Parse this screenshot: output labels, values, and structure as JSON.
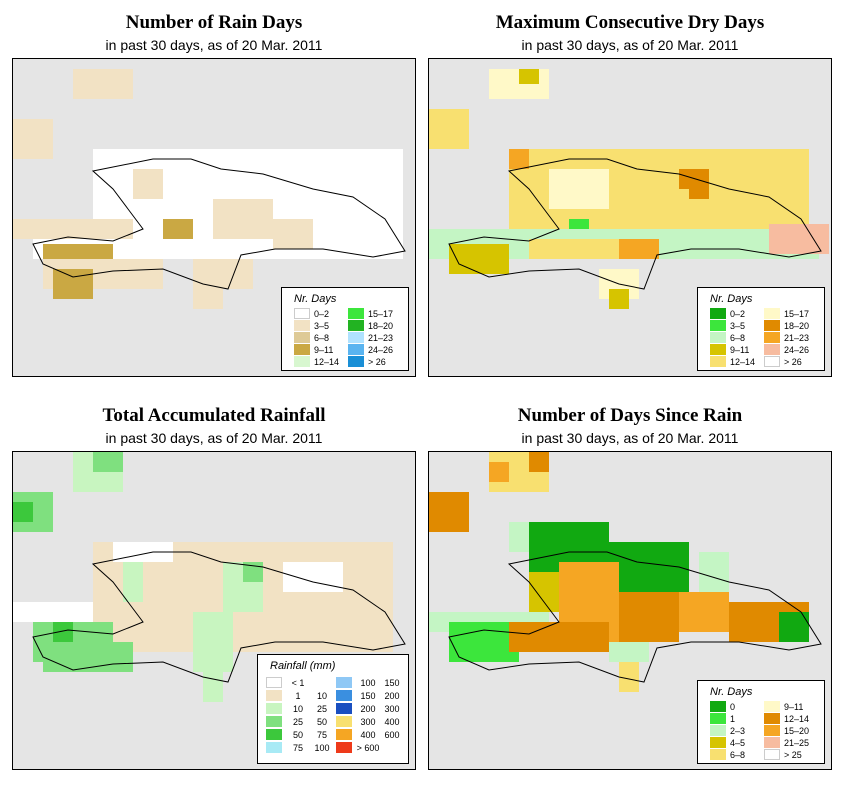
{
  "panels": [
    {
      "id": "rain-days",
      "title": "Number of Rain Days",
      "subtitle": "in past 30 days, as of  20 Mar. 2011",
      "legend": {
        "title": "Nr. Days",
        "items": [
          {
            "label": "0–2",
            "color": "#ffffff"
          },
          {
            "label": "3–5",
            "color": "#f2e2c4"
          },
          {
            "label": "6–8",
            "color": "#deca96"
          },
          {
            "label": "9–11",
            "color": "#caa843"
          },
          {
            "label": "12–14",
            "color": "#d8f7d0"
          },
          {
            "label": "15–17",
            "color": "#3ce63c"
          },
          {
            "label": "18–20",
            "color": "#22b322"
          },
          {
            "label": "21–23",
            "color": "#b0e2ff"
          },
          {
            "label": "24–26",
            "color": "#5ab4f0"
          },
          {
            "label": "> 26",
            "color": "#1a8fd6"
          }
        ]
      }
    },
    {
      "id": "max-dry-days",
      "title": "Maximum Consecutive Dry Days",
      "subtitle": "in past 30 days, as of  20 Mar. 2011",
      "legend": {
        "title": "Nr. Days",
        "items": [
          {
            "label": "0–2",
            "color": "#11a911"
          },
          {
            "label": "3–5",
            "color": "#3ce63c"
          },
          {
            "label": "6–8",
            "color": "#c4f5c4"
          },
          {
            "label": "9–11",
            "color": "#d6c400"
          },
          {
            "label": "12–14",
            "color": "#f8e070"
          },
          {
            "label": "15–17",
            "color": "#fff9c8"
          },
          {
            "label": "18–20",
            "color": "#e08a00"
          },
          {
            "label": "21–23",
            "color": "#f5a623"
          },
          {
            "label": "24–26",
            "color": "#f7bca0"
          },
          {
            "label": "> 26",
            "color": "#ffffff"
          }
        ]
      }
    },
    {
      "id": "total-rainfall",
      "title": "Total Accumulated Rainfall",
      "subtitle": "in past 30 days, as of  20 Mar. 2011",
      "legend": {
        "title": "Rainfall (mm)",
        "items": [
          {
            "lo": "< 1",
            "hi": "",
            "color": "#ffffff"
          },
          {
            "lo": "1",
            "hi": "10",
            "color": "#f2e2c4"
          },
          {
            "lo": "10",
            "hi": "25",
            "color": "#c8f5c0"
          },
          {
            "lo": "25",
            "hi": "50",
            "color": "#7fe07f"
          },
          {
            "lo": "50",
            "hi": "75",
            "color": "#3cc83c"
          },
          {
            "lo": "75",
            "hi": "100",
            "color": "#a8eaf5"
          },
          {
            "lo": "100",
            "hi": "150",
            "color": "#8fc8f5"
          },
          {
            "lo": "150",
            "hi": "200",
            "color": "#3a8fe0"
          },
          {
            "lo": "200",
            "hi": "300",
            "color": "#1a4fc0"
          },
          {
            "lo": "300",
            "hi": "400",
            "color": "#f8e070"
          },
          {
            "lo": "400",
            "hi": "600",
            "color": "#f5a623"
          },
          {
            "lo": "> 600",
            "hi": "",
            "color": "#ee3a1a"
          }
        ]
      }
    },
    {
      "id": "days-since-rain",
      "title": "Number of Days Since Rain",
      "subtitle": "in past 30 days, as of  20 Mar. 2011",
      "legend": {
        "title": "Nr. Days",
        "items": [
          {
            "label": "0",
            "color": "#11a911"
          },
          {
            "label": "1",
            "color": "#3ce63c"
          },
          {
            "label": "2–3",
            "color": "#c4f5c4"
          },
          {
            "label": "4–5",
            "color": "#d6c400"
          },
          {
            "label": "6–8",
            "color": "#f8e070"
          },
          {
            "label": "9–11",
            "color": "#fff9c8"
          },
          {
            "label": "12–14",
            "color": "#e08a00"
          },
          {
            "label": "15–20",
            "color": "#f5a623"
          },
          {
            "label": "21–25",
            "color": "#f7bca0"
          },
          {
            "label": "> 25",
            "color": "#ffffff"
          }
        ]
      }
    }
  ]
}
